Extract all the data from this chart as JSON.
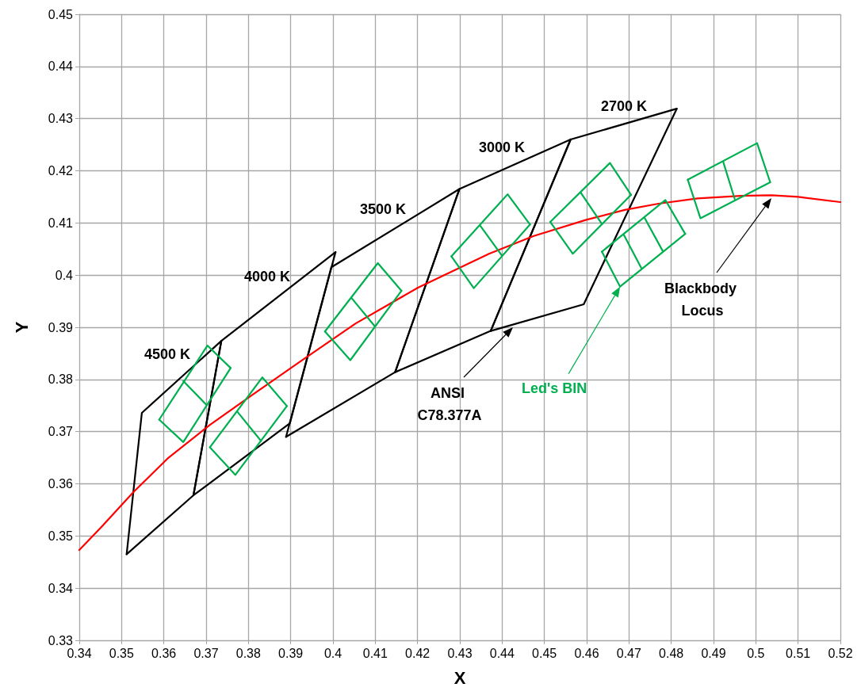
{
  "chart_data": {
    "type": "line",
    "xlabel": "X",
    "ylabel": "Y",
    "xlim": [
      0.34,
      0.52
    ],
    "xticks": [
      0.34,
      0.35,
      0.36,
      0.37,
      0.38,
      0.39,
      0.4,
      0.41,
      0.42,
      0.43,
      0.44,
      0.45,
      0.46,
      0.47,
      0.48,
      0.49,
      0.5,
      0.51,
      0.52
    ],
    "ylim": [
      0.33,
      0.45
    ],
    "yticks": [
      0.33,
      0.34,
      0.35,
      0.36,
      0.37,
      0.38,
      0.39,
      0.4,
      0.41,
      0.42,
      0.43,
      0.44,
      0.45
    ],
    "grid": true,
    "legend": false,
    "marker": "none",
    "line_style": "solid",
    "series": [
      {
        "color": "#000000",
        "x": [
          0.3512,
          0.3548,
          0.3736
        ],
        "values": [
          0.3465,
          0.3736,
          0.3874
        ]
      },
      {
        "color": "#000000",
        "x": [
          0.3512,
          0.367,
          0.3736
        ],
        "values": [
          0.3465,
          0.3578,
          0.3874
        ]
      },
      {
        "color": "#000000",
        "x": [
          0.367,
          0.3736,
          0.4006
        ],
        "values": [
          0.3578,
          0.3874,
          0.4044
        ]
      },
      {
        "color": "#000000",
        "x": [
          0.367,
          0.3898,
          0.4006
        ],
        "values": [
          0.3578,
          0.3716,
          0.4044
        ]
      },
      {
        "color": "#000000",
        "x": [
          0.3889,
          0.3996,
          0.4299
        ],
        "values": [
          0.369,
          0.4015,
          0.4165
        ]
      },
      {
        "color": "#000000",
        "x": [
          0.3889,
          0.4147,
          0.4299
        ],
        "values": [
          0.369,
          0.3814,
          0.4165
        ]
      },
      {
        "color": "#000000",
        "x": [
          0.4147,
          0.4299,
          0.4562
        ],
        "values": [
          0.3814,
          0.4165,
          0.426
        ]
      },
      {
        "color": "#000000",
        "x": [
          0.4147,
          0.4373,
          0.4562
        ],
        "values": [
          0.3814,
          0.3893,
          0.426
        ]
      },
      {
        "color": "#000000",
        "x": [
          0.4373,
          0.4562,
          0.4813
        ],
        "values": [
          0.3893,
          0.426,
          0.4319
        ]
      },
      {
        "color": "#000000",
        "x": [
          0.4373,
          0.4593,
          0.4813
        ],
        "values": [
          0.3893,
          0.3944,
          0.4319
        ]
      },
      {
        "color": "#ff0000",
        "x": [
          0.34,
          0.3451,
          0.3528,
          0.3611,
          0.3709,
          0.3805,
          0.392,
          0.4053,
          0.4201,
          0.4369,
          0.4475,
          0.4599,
          0.469,
          0.477,
          0.4862,
          0.4965,
          0.5037,
          0.51,
          0.52
        ],
        "values": [
          0.3473,
          0.3516,
          0.3584,
          0.365,
          0.3713,
          0.3768,
          0.3833,
          0.3907,
          0.3976,
          0.4041,
          0.4075,
          0.4106,
          0.4125,
          0.4137,
          0.4147,
          0.4152,
          0.4153,
          0.415,
          0.414
        ]
      },
      {
        "color": "#00b050",
        "x": [
          0.3589,
          0.3703,
          0.3758
        ],
        "values": [
          0.3723,
          0.3865,
          0.3822
        ]
      },
      {
        "color": "#00b050",
        "x": [
          0.3589,
          0.3646,
          0.3758
        ],
        "values": [
          0.3723,
          0.368,
          0.3822
        ]
      },
      {
        "color": "#00b050",
        "x": [
          0.3646,
          0.3701
        ],
        "values": [
          0.3797,
          0.3751
        ]
      },
      {
        "color": "#00b050",
        "x": [
          0.3709,
          0.3833,
          0.3891
        ],
        "values": [
          0.367,
          0.3804,
          0.3749
        ]
      },
      {
        "color": "#00b050",
        "x": [
          0.3709,
          0.3769,
          0.3891
        ],
        "values": [
          0.367,
          0.3617,
          0.3749
        ]
      },
      {
        "color": "#00b050",
        "x": [
          0.3774,
          0.383
        ],
        "values": [
          0.3738,
          0.3682
        ]
      },
      {
        "color": "#00b050",
        "x": [
          0.3981,
          0.4106,
          0.4162
        ],
        "values": [
          0.3892,
          0.4023,
          0.397
        ]
      },
      {
        "color": "#00b050",
        "x": [
          0.3981,
          0.4041,
          0.4162
        ],
        "values": [
          0.3892,
          0.3837,
          0.397
        ]
      },
      {
        "color": "#00b050",
        "x": [
          0.4044,
          0.4099
        ],
        "values": [
          0.3956,
          0.3902
        ]
      },
      {
        "color": "#00b050",
        "x": [
          0.428,
          0.4413,
          0.4466
        ],
        "values": [
          0.4036,
          0.4155,
          0.4097
        ]
      },
      {
        "color": "#00b050",
        "x": [
          0.428,
          0.4333,
          0.4466
        ],
        "values": [
          0.4036,
          0.3975,
          0.4097
        ]
      },
      {
        "color": "#00b050",
        "x": [
          0.4348,
          0.4399
        ],
        "values": [
          0.4095,
          0.4038
        ]
      },
      {
        "color": "#00b050",
        "x": [
          0.4514,
          0.4655,
          0.4705
        ],
        "values": [
          0.4102,
          0.4215,
          0.4154
        ]
      },
      {
        "color": "#00b050",
        "x": [
          0.4514,
          0.4567,
          0.4705
        ],
        "values": [
          0.4102,
          0.4041,
          0.4154
        ]
      },
      {
        "color": "#00b050",
        "x": [
          0.4586,
          0.4636
        ],
        "values": [
          0.4158,
          0.4098
        ]
      },
      {
        "color": "#00b050",
        "x": [
          0.4636,
          0.4786,
          0.4833
        ],
        "values": [
          0.4045,
          0.4144,
          0.4079
        ]
      },
      {
        "name": "Led's BIN",
        "color": "#00b050",
        "x": [
          0.4636,
          0.4679,
          0.4833
        ],
        "values": [
          0.4045,
          0.3978,
          0.4079
        ]
      },
      {
        "color": "#00b050",
        "x": [
          0.4688,
          0.4729
        ],
        "values": [
          0.4077,
          0.4014
        ]
      },
      {
        "color": "#00b050",
        "x": [
          0.4736,
          0.478
        ],
        "values": [
          0.4111,
          0.4046
        ]
      },
      {
        "color": "#00b050",
        "x": [
          0.4839,
          0.5003,
          0.5034
        ],
        "values": [
          0.4183,
          0.4253,
          0.4178
        ]
      },
      {
        "color": "#00b050",
        "x": [
          0.4839,
          0.4869,
          0.5034
        ],
        "values": [
          0.4183,
          0.4109,
          0.4178
        ]
      },
      {
        "color": "#00b050",
        "x": [
          0.4923,
          0.495
        ],
        "values": [
          0.4217,
          0.4146
        ]
      }
    ],
    "annotations": [
      "4500 K",
      "4000 K",
      "3500 K",
      "3000 K",
      "2700 K",
      "ANSI C78.377A",
      "Blackbody Locus"
    ]
  }
}
